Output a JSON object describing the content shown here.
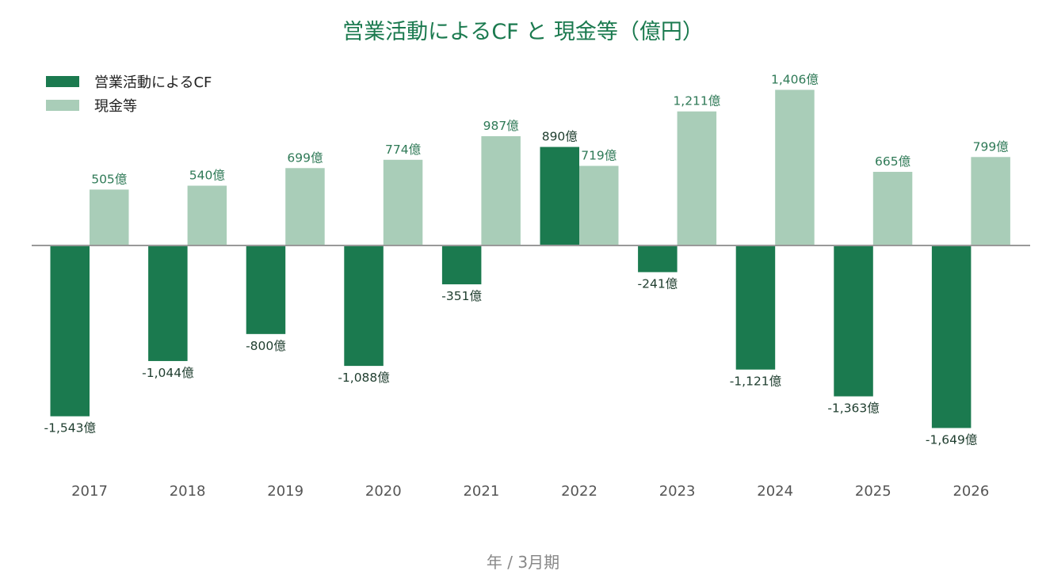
{
  "chart_data": {
    "type": "bar",
    "title": "営業活動によるCF と 現金等（億円）",
    "xlabel": "年 / 3月期",
    "categories": [
      "2017",
      "2018",
      "2019",
      "2020",
      "2021",
      "2022",
      "2023",
      "2024",
      "2025",
      "2026"
    ],
    "series": [
      {
        "name": "営業活動によるCF",
        "color": "#1b7a4f",
        "values": [
          -1543,
          -1044,
          -800,
          -1088,
          -351,
          890,
          -241,
          -1121,
          -1363,
          -1649
        ],
        "labels": [
          "-1,543億",
          "-1,044億",
          "-800億",
          "-1,088億",
          "-351億",
          "890億",
          "-241億",
          "-1,121億",
          "-1,363億",
          "-1,649億"
        ]
      },
      {
        "name": "現金等",
        "color": "#a9cdb8",
        "values": [
          505,
          540,
          699,
          774,
          987,
          719,
          1211,
          1406,
          665,
          799
        ],
        "labels": [
          "505億",
          "540億",
          "699億",
          "774億",
          "987億",
          "719億",
          "1,211億",
          "1,406億",
          "665億",
          "799億"
        ]
      }
    ],
    "ylim": [
      -2000,
      1500
    ],
    "grid": false,
    "legend": "top-left"
  }
}
